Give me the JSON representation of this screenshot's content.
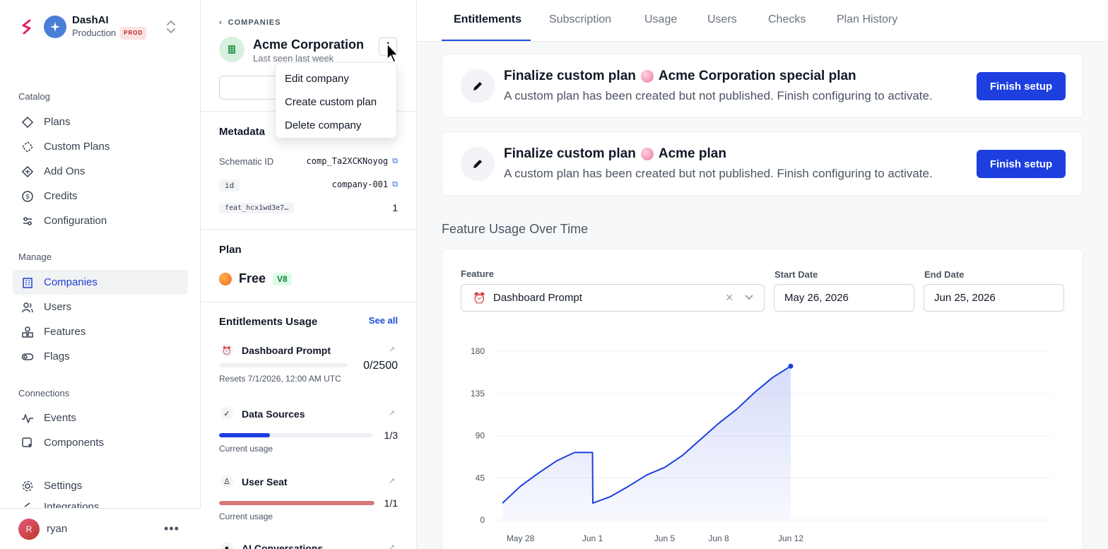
{
  "brand": {
    "name": "DashAI",
    "env": "Production",
    "env_badge": "PROD"
  },
  "sidebar": {
    "sections": [
      {
        "label": "Catalog"
      },
      {
        "label": "Manage"
      },
      {
        "label": "Connections"
      }
    ],
    "catalog": [
      {
        "label": "Plans",
        "icon": "diamond-icon"
      },
      {
        "label": "Custom Plans",
        "icon": "dashed-diamond-icon"
      },
      {
        "label": "Add Ons",
        "icon": "diamond-plus-icon"
      },
      {
        "label": "Credits",
        "icon": "dollar-circle-icon"
      },
      {
        "label": "Configuration",
        "icon": "sliders-icon"
      }
    ],
    "manage": [
      {
        "label": "Companies",
        "icon": "building-icon",
        "active": true
      },
      {
        "label": "Users",
        "icon": "users-icon"
      },
      {
        "label": "Features",
        "icon": "shapes-icon"
      },
      {
        "label": "Flags",
        "icon": "toggle-icon"
      }
    ],
    "connections": [
      {
        "label": "Events",
        "icon": "activity-icon"
      },
      {
        "label": "Components",
        "icon": "component-icon"
      }
    ],
    "settings": {
      "label": "Settings",
      "icon": "gear-icon"
    },
    "partial_item": "Integrations",
    "user": {
      "initial": "R",
      "name": "ryan"
    }
  },
  "company": {
    "back_label": "COMPANIES",
    "name": "Acme Corporation",
    "last_seen": "Last seen last week",
    "menu": [
      "Edit company",
      "Create custom plan",
      "Delete company"
    ],
    "metadata_title": "Metadata",
    "metadata": [
      {
        "key": "Schematic ID",
        "value": "comp_Ta2XCKNoyog",
        "copy": true,
        "chip": false
      },
      {
        "key": "id",
        "value": "company-001",
        "copy": true,
        "chip": true
      },
      {
        "key": "feat_hcx1wd3e7…",
        "value": "1",
        "copy": false,
        "chip": true
      }
    ],
    "plan_title": "Plan",
    "plan": {
      "name": "Free",
      "version": "V8"
    },
    "entitlements_title": "Entitlements Usage",
    "see_all": "See all",
    "entitlements": [
      {
        "name": "Dashboard Prompt",
        "value": "0/2500",
        "sub": "Resets 7/1/2026, 12:00 AM UTC",
        "fill": 0.0,
        "color": "#eef0f3"
      },
      {
        "name": "Data Sources",
        "value": "1/3",
        "sub": "Current usage",
        "fill": 0.333,
        "color": "#1d3fe0"
      },
      {
        "name": "User Seat",
        "value": "1/1",
        "sub": "Current usage",
        "fill": 1.0,
        "color": "#d97777"
      },
      {
        "name": "AI Conversations",
        "value": "",
        "sub": "",
        "fill": 0,
        "color": "#eef0f3"
      }
    ]
  },
  "tabs": [
    "Entitlements",
    "Subscription",
    "Usage",
    "Users",
    "Checks",
    "Plan History"
  ],
  "banners": [
    {
      "prefix": "Finalize custom plan",
      "plan": "Acme Corporation special plan",
      "desc": "A custom plan has been created but not published. Finish configuring to activate.",
      "button": "Finish setup"
    },
    {
      "prefix": "Finalize custom plan",
      "plan": "Acme plan",
      "desc": "A custom plan has been created but not published. Finish configuring to activate.",
      "button": "Finish setup"
    }
  ],
  "usage": {
    "title": "Feature Usage Over Time",
    "feature_label": "Feature",
    "feature_value": "Dashboard Prompt",
    "start_label": "Start Date",
    "start_value": "May 26, 2026",
    "end_label": "End Date",
    "end_value": "Jun 25, 2026"
  },
  "chart_data": {
    "type": "area",
    "x_ticks": [
      "May 28",
      "Jun 1",
      "Jun 5",
      "Jun 8",
      "Jun 12"
    ],
    "y_ticks": [
      0,
      45,
      90,
      135,
      180
    ],
    "ylim": [
      0,
      180
    ],
    "grid": true,
    "color": "#1d3fe0",
    "x": [
      "May 27",
      "May 28",
      "May 29",
      "May 30",
      "May 31",
      "Jun 1 00:00",
      "Jun 1 01:00",
      "Jun 2",
      "Jun 3",
      "Jun 4",
      "Jun 5",
      "Jun 6",
      "Jun 7",
      "Jun 8",
      "Jun 9",
      "Jun 10",
      "Jun 11",
      "Jun 12"
    ],
    "values": [
      18,
      36,
      50,
      63,
      72,
      72,
      18,
      25,
      36,
      48,
      56,
      69,
      86,
      103,
      118,
      136,
      152,
      164
    ]
  }
}
